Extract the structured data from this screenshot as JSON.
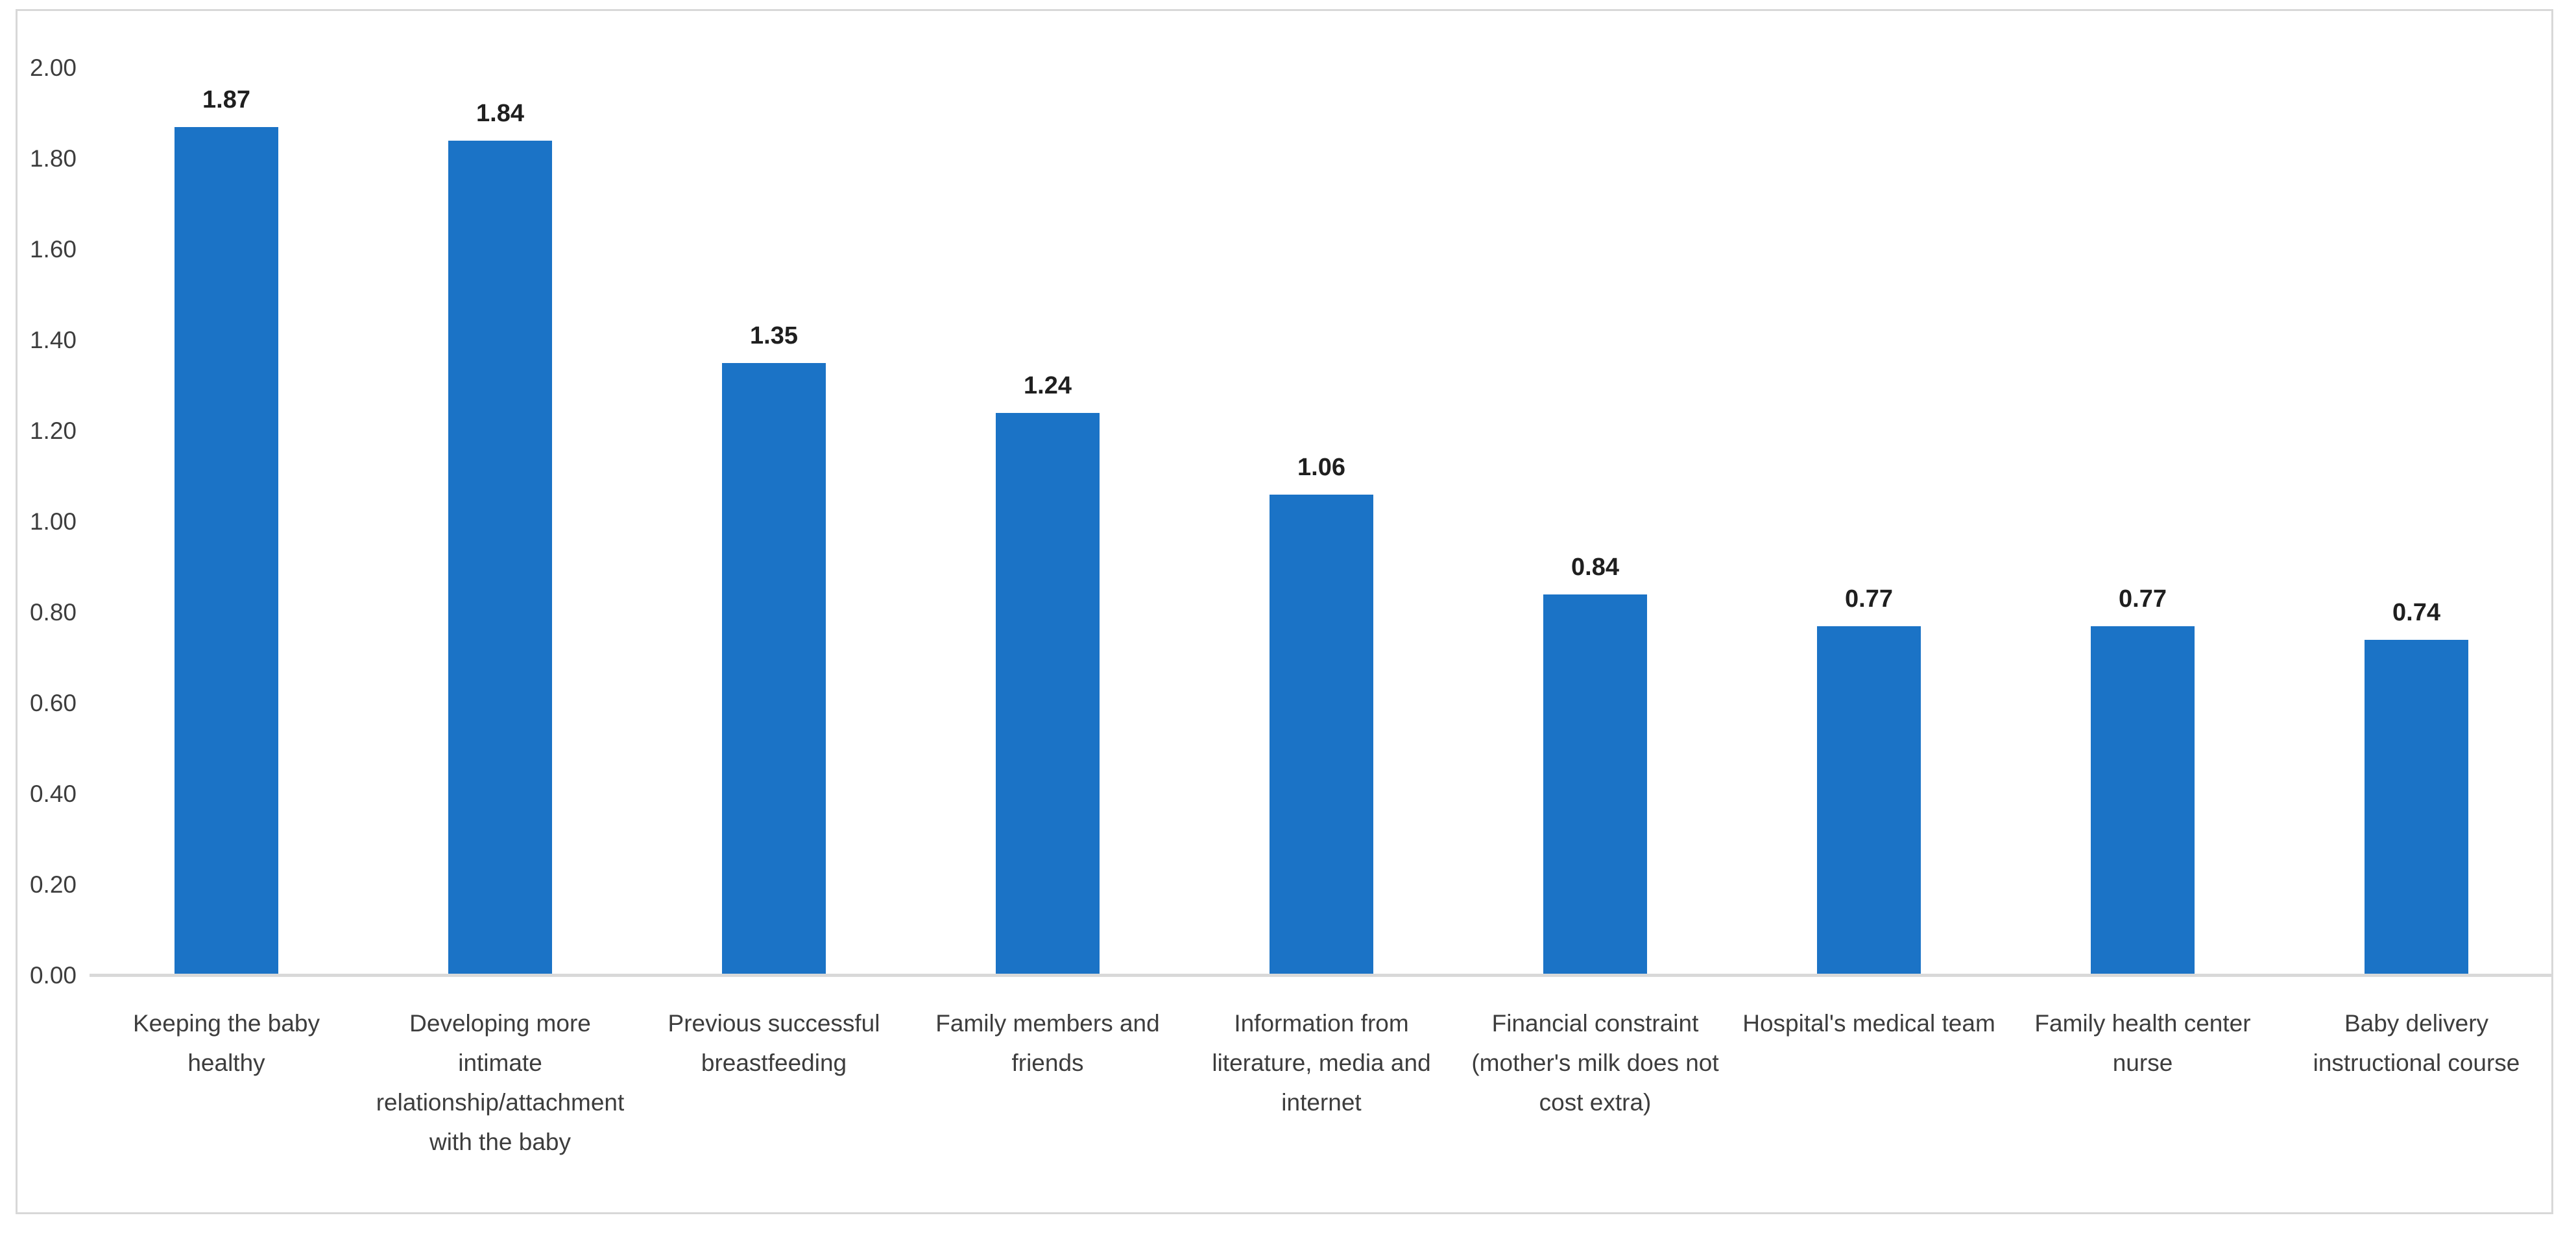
{
  "figure": {
    "background_color": "#ffffff",
    "frame_border_color": "#d8d8d8"
  },
  "chart_data": {
    "type": "bar",
    "title": "",
    "xlabel": "",
    "ylabel": "",
    "grid": "off",
    "legend": "none",
    "ylim": [
      0,
      2
    ],
    "bar_color": "#1b73c6",
    "axis_line_color": "#d9d9d9",
    "tick_label_color": "#3d3d3d",
    "value_label_color": "#1f1f1f",
    "y_ticks": [
      "0.00",
      "0.20",
      "0.40",
      "0.60",
      "0.80",
      "1.00",
      "1.20",
      "1.40",
      "1.60",
      "1.80",
      "2.00"
    ],
    "categories": [
      "Keeping the baby\nhealthy",
      "Developing more\nintimate\nrelationship/attachment\nwith the baby",
      "Previous successful\nbreastfeeding",
      "Family members and\nfriends",
      "Information from\nliterature, media and\ninternet",
      "Financial constraint\n(mother's milk does not\ncost extra)",
      "Hospital's medical team",
      "Family health center\nnurse",
      "Baby delivery\ninstructional course"
    ],
    "values": [
      1.87,
      1.84,
      1.35,
      1.24,
      1.06,
      0.84,
      0.77,
      0.77,
      0.74
    ],
    "value_labels": [
      "1.87",
      "1.84",
      "1.35",
      "1.24",
      "1.06",
      "0.84",
      "0.77",
      "0.77",
      "0.74"
    ]
  }
}
